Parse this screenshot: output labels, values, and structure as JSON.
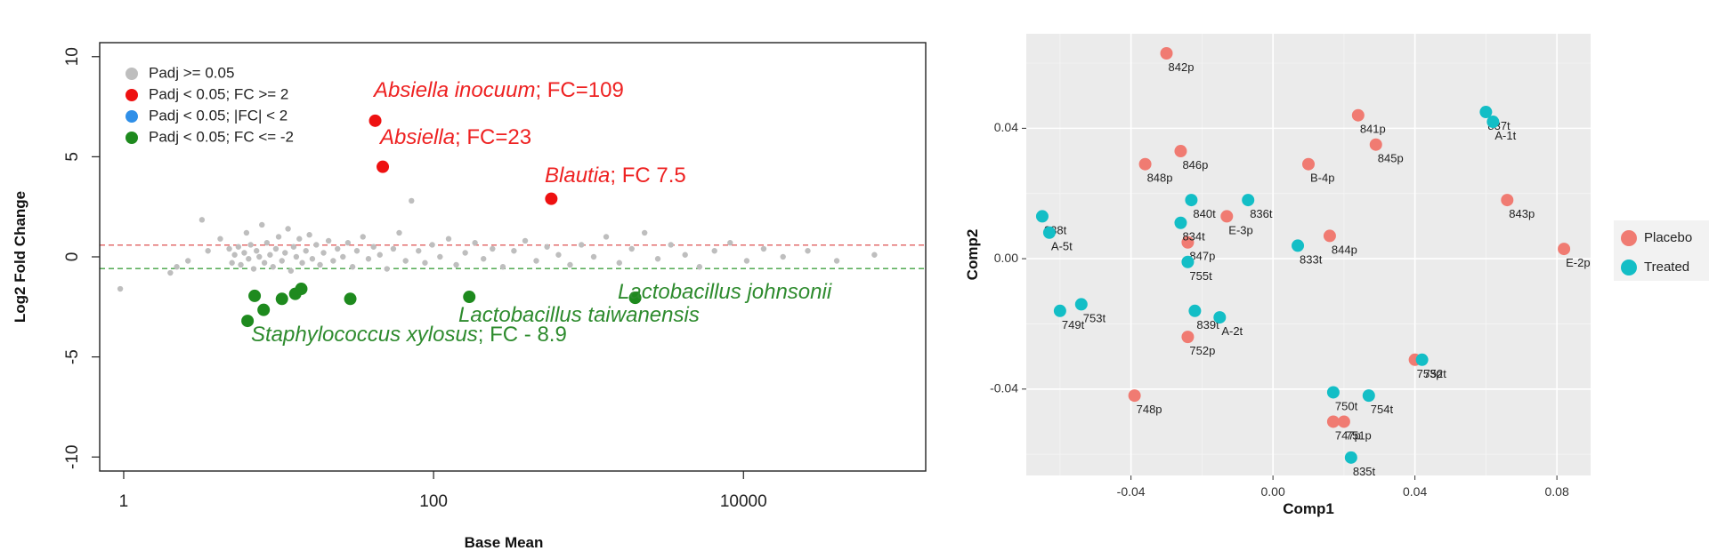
{
  "chart_data": [
    {
      "type": "scatter",
      "xlabel": "Base Mean",
      "ylabel": "Log2 Fold Change",
      "x_scale": "log10",
      "xlim": [
        0.7,
        150000
      ],
      "ylim": [
        -10.7,
        10.7
      ],
      "x_ticks": [
        {
          "value": 1,
          "label": "1"
        },
        {
          "value": 100,
          "label": "100"
        },
        {
          "value": 10000,
          "label": "10000"
        }
      ],
      "y_ticks": [
        {
          "value": -10,
          "label": "-10"
        },
        {
          "value": -5,
          "label": "-5"
        },
        {
          "value": 0,
          "label": "0"
        },
        {
          "value": 5,
          "label": "5"
        },
        {
          "value": 10,
          "label": "10"
        }
      ],
      "threshold_lines": [
        {
          "y": 0.585,
          "color": "#e06060"
        },
        {
          "y": -0.585,
          "color": "#40a040"
        }
      ],
      "legend_position": "top-left",
      "legend": [
        {
          "label": "Padj >= 0.05",
          "color": "#bebebe"
        },
        {
          "label": "Padj < 0.05; FC >= 2",
          "color": "#ee1111"
        },
        {
          "label": "Padj < 0.05; |FC| < 2",
          "color": "#2f8fe8"
        },
        {
          "label": "Padj < 0.05; FC <= -2",
          "color": "#1e8a1e"
        }
      ],
      "annotations": [
        {
          "italic": "Absiella inocuum",
          "rest": "; FC=109",
          "color": "#ee2222"
        },
        {
          "italic": "Absiella",
          "rest": "; FC=23",
          "color": "#ee2222"
        },
        {
          "italic": "Blautia",
          "rest": "; FC 7.5",
          "color": "#ee2222"
        },
        {
          "italic": "Lactobacillus johnsonii",
          "rest": "",
          "color": "#2e8b2e"
        },
        {
          "italic": "Lactobacillus taiwanensis",
          "rest": "",
          "color": "#2e8b2e"
        },
        {
          "italic": "Staphylococcus xylosus",
          "rest": "; FC - 8.9",
          "color": "#2e8b2e"
        }
      ],
      "series": [
        {
          "name": "Padj < 0.05; FC >= 2",
          "color": "#ee1111",
          "points": [
            [
              42,
              6.8
            ],
            [
              47,
              4.5
            ],
            [
              575,
              2.9
            ]
          ]
        },
        {
          "name": "Padj < 0.05; FC <= -2",
          "color": "#1e8a1e",
          "points": [
            [
              6.3,
              -3.2
            ],
            [
              7.0,
              -1.95
            ],
            [
              8.0,
              -2.65
            ],
            [
              10.5,
              -2.1
            ],
            [
              12.8,
              -1.85
            ],
            [
              14.0,
              -1.6
            ],
            [
              29,
              -2.1
            ],
            [
              170,
              -2.0
            ],
            [
              2000,
              -2.05
            ]
          ]
        },
        {
          "name": "Padj >= 0.05",
          "color": "#bebebe",
          "points": [
            [
              0.95,
              -1.6
            ],
            [
              2.0,
              -0.8
            ],
            [
              2.2,
              -0.5
            ],
            [
              2.6,
              -0.2
            ],
            [
              3.2,
              1.85
            ],
            [
              3.5,
              0.3
            ],
            [
              4.2,
              0.9
            ],
            [
              4.8,
              0.4
            ],
            [
              5.0,
              -0.3
            ],
            [
              5.2,
              0.1
            ],
            [
              5.5,
              0.5
            ],
            [
              5.7,
              -0.4
            ],
            [
              6.0,
              0.2
            ],
            [
              6.2,
              1.2
            ],
            [
              6.4,
              -0.1
            ],
            [
              6.6,
              0.6
            ],
            [
              6.9,
              -0.6
            ],
            [
              7.2,
              0.3
            ],
            [
              7.5,
              0.0
            ],
            [
              7.8,
              1.6
            ],
            [
              8.1,
              -0.3
            ],
            [
              8.4,
              0.7
            ],
            [
              8.8,
              0.1
            ],
            [
              9.2,
              -0.5
            ],
            [
              9.6,
              0.4
            ],
            [
              10.0,
              1.0
            ],
            [
              10.5,
              -0.2
            ],
            [
              11.0,
              0.2
            ],
            [
              11.5,
              1.4
            ],
            [
              12.0,
              -0.7
            ],
            [
              12.5,
              0.5
            ],
            [
              13.0,
              0.0
            ],
            [
              13.6,
              0.9
            ],
            [
              14.2,
              -0.3
            ],
            [
              15.0,
              0.3
            ],
            [
              15.8,
              1.1
            ],
            [
              16.5,
              -0.1
            ],
            [
              17.5,
              0.6
            ],
            [
              18.5,
              -0.4
            ],
            [
              19.5,
              0.2
            ],
            [
              21.0,
              0.8
            ],
            [
              22.5,
              -0.2
            ],
            [
              24.0,
              0.4
            ],
            [
              26.0,
              0.0
            ],
            [
              28.0,
              0.7
            ],
            [
              30.0,
              -0.5
            ],
            [
              32.0,
              0.3
            ],
            [
              35.0,
              1.0
            ],
            [
              38.0,
              -0.1
            ],
            [
              41.0,
              0.5
            ],
            [
              45.0,
              0.1
            ],
            [
              50.0,
              -0.6
            ],
            [
              55.0,
              0.4
            ],
            [
              60.0,
              1.2
            ],
            [
              66.0,
              -0.2
            ],
            [
              72.0,
              2.8
            ],
            [
              80.0,
              0.3
            ],
            [
              88.0,
              -0.3
            ],
            [
              98.0,
              0.6
            ],
            [
              110.0,
              0.0
            ],
            [
              125.0,
              0.9
            ],
            [
              140.0,
              -0.4
            ],
            [
              160.0,
              0.2
            ],
            [
              185.0,
              0.7
            ],
            [
              210.0,
              -0.1
            ],
            [
              240.0,
              0.4
            ],
            [
              280.0,
              -0.5
            ],
            [
              330.0,
              0.3
            ],
            [
              390.0,
              0.8
            ],
            [
              460.0,
              -0.2
            ],
            [
              540.0,
              0.5
            ],
            [
              640.0,
              0.1
            ],
            [
              760.0,
              -0.4
            ],
            [
              900.0,
              0.6
            ],
            [
              1080.0,
              0.0
            ],
            [
              1300.0,
              1.0
            ],
            [
              1580.0,
              -0.3
            ],
            [
              1900.0,
              0.4
            ],
            [
              2300.0,
              1.2
            ],
            [
              2800.0,
              -0.1
            ],
            [
              3400.0,
              0.6
            ],
            [
              4200.0,
              0.1
            ],
            [
              5200.0,
              -0.5
            ],
            [
              6500.0,
              0.3
            ],
            [
              8200.0,
              0.7
            ],
            [
              10500.0,
              -0.2
            ],
            [
              13500.0,
              0.4
            ],
            [
              18000.0,
              0.0
            ],
            [
              26000.0,
              0.3
            ],
            [
              40000.0,
              -0.2
            ],
            [
              70000.0,
              0.1
            ]
          ]
        }
      ]
    },
    {
      "type": "scatter",
      "xlabel": "Comp1",
      "ylabel": "Comp2",
      "xlim": [
        -0.0695,
        0.0895
      ],
      "ylim": [
        -0.0665,
        0.069
      ],
      "x_ticks": [
        {
          "value": -0.04,
          "label": "-0.04"
        },
        {
          "value": 0.0,
          "label": "0.00"
        },
        {
          "value": 0.04,
          "label": "0.04"
        },
        {
          "value": 0.08,
          "label": "0.08"
        }
      ],
      "y_ticks": [
        {
          "value": -0.04,
          "label": "-0.04"
        },
        {
          "value": 0.0,
          "label": "0.00"
        },
        {
          "value": 0.04,
          "label": "0.04"
        }
      ],
      "grid": true,
      "legend_position": "right",
      "legend": [
        {
          "label": "Placebo",
          "color": "#f07b72"
        },
        {
          "label": "Treated",
          "color": "#13bec6"
        }
      ],
      "series": [
        {
          "name": "Placebo",
          "color": "#f07b72",
          "points": [
            {
              "x": -0.03,
              "y": 0.063,
              "label": "842p"
            },
            {
              "x": 0.024,
              "y": 0.044,
              "label": "841p"
            },
            {
              "x": 0.029,
              "y": 0.035,
              "label": "845p"
            },
            {
              "x": -0.026,
              "y": 0.033,
              "label": "846p"
            },
            {
              "x": -0.036,
              "y": 0.029,
              "label": "848p"
            },
            {
              "x": 0.01,
              "y": 0.029,
              "label": "B-4p"
            },
            {
              "x": 0.066,
              "y": 0.018,
              "label": "843p"
            },
            {
              "x": -0.013,
              "y": 0.013,
              "label": "E-3p"
            },
            {
              "x": 0.016,
              "y": 0.007,
              "label": "844p"
            },
            {
              "x": -0.024,
              "y": 0.005,
              "label": "847p"
            },
            {
              "x": 0.082,
              "y": 0.003,
              "label": "E-2p"
            },
            {
              "x": -0.024,
              "y": -0.024,
              "label": "752p"
            },
            {
              "x": 0.04,
              "y": -0.031,
              "label": "753p"
            },
            {
              "x": -0.039,
              "y": -0.042,
              "label": "748p"
            },
            {
              "x": 0.017,
              "y": -0.05,
              "label": "747p"
            },
            {
              "x": 0.02,
              "y": -0.05,
              "label": "751p"
            }
          ]
        },
        {
          "name": "Treated",
          "color": "#13bec6",
          "points": [
            {
              "x": 0.06,
              "y": 0.045,
              "label": "837t"
            },
            {
              "x": 0.062,
              "y": 0.042,
              "label": "A-1t"
            },
            {
              "x": -0.065,
              "y": 0.013,
              "label": "838t"
            },
            {
              "x": -0.063,
              "y": 0.008,
              "label": "A-5t"
            },
            {
              "x": -0.023,
              "y": 0.018,
              "label": "840t"
            },
            {
              "x": -0.007,
              "y": 0.018,
              "label": "836t"
            },
            {
              "x": -0.026,
              "y": 0.011,
              "label": "834t"
            },
            {
              "x": 0.007,
              "y": 0.004,
              "label": "833t"
            },
            {
              "x": -0.024,
              "y": -0.001,
              "label": "755t"
            },
            {
              "x": -0.022,
              "y": -0.016,
              "label": "839t"
            },
            {
              "x": -0.015,
              "y": -0.018,
              "label": "A-2t"
            },
            {
              "x": -0.06,
              "y": -0.016,
              "label": "749t"
            },
            {
              "x": -0.054,
              "y": -0.014,
              "label": "753t"
            },
            {
              "x": 0.042,
              "y": -0.031,
              "label": "752t"
            },
            {
              "x": 0.017,
              "y": -0.041,
              "label": "750t"
            },
            {
              "x": 0.027,
              "y": -0.042,
              "label": "754t"
            },
            {
              "x": 0.022,
              "y": -0.061,
              "label": "835t"
            }
          ]
        }
      ]
    }
  ]
}
